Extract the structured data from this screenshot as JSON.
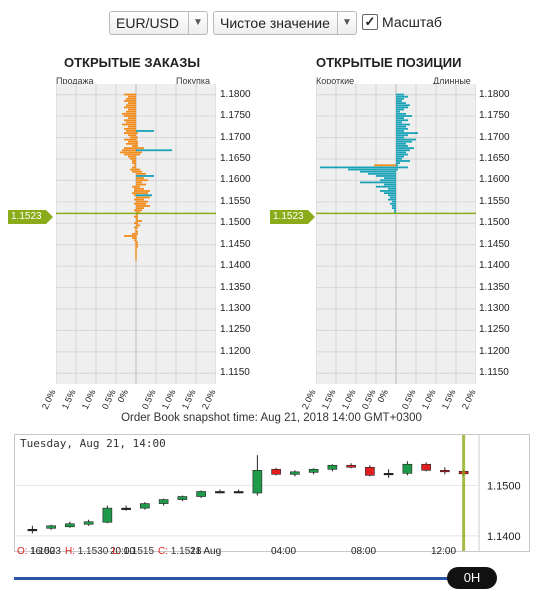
{
  "controls": {
    "symbol": "EUR/USD",
    "mode": "Чистое значение",
    "scale_label": "Масштаб",
    "scale_checked": true
  },
  "orders": {
    "title": "ОТКРЫТЫЕ ЗАКАЗЫ",
    "left_label": "Продажа",
    "right_label": "Покупка"
  },
  "positions": {
    "title": "ОТКРЫТЫЕ ПОЗИЦИИ",
    "left_label": "Короткие",
    "right_label": "Длинные"
  },
  "current_price": "1.1523",
  "y_ticks": [
    "1.1800",
    "1.1750",
    "1.1700",
    "1.1650",
    "1.1600",
    "1.1550",
    "1.1500",
    "1.1450",
    "1.1400",
    "1.1350",
    "1.1300",
    "1.1250",
    "1.1200",
    "1.1150"
  ],
  "x_ticks": [
    "2.0%",
    "1.5%",
    "1.0%",
    "0.5%",
    "0%",
    "0.5%",
    "1.0%",
    "1.5%",
    "2.0%"
  ],
  "snapshot": "Order Book snapshot time: Aug 21, 2018 14:00 GMT+0300",
  "colors": {
    "sell": "#f28c1a",
    "buy": "#1aa3b8",
    "price": "#8bac1a",
    "up": "#1f9a4a",
    "down": "#e02020"
  },
  "chart_data": [
    {
      "type": "bar",
      "name": "orders",
      "title": "ОТКРЫТЫЕ ЗАКАЗЫ",
      "ylim": [
        1.1125,
        1.1825
      ],
      "xlim": [
        -2.0,
        2.0
      ],
      "bucket": 0.0005,
      "sell": [
        0.3,
        0.2,
        0.25,
        0.3,
        0.2,
        0.25,
        0.3,
        0.2,
        0.25,
        0.35,
        0.3,
        0.2,
        0.3,
        0.25,
        0.35,
        0.2,
        0.3,
        0.25,
        0.3,
        0.2,
        0.15,
        0.3,
        0.2,
        0.25,
        0.1,
        0.3,
        0.35,
        0.4,
        0.3,
        0.2,
        0.15,
        0.1,
        0.1,
        0.05,
        0.1,
        0.15,
        0.1,
        0,
        0,
        0,
        0,
        0,
        0,
        0.1,
        0.05,
        0.05,
        0.1,
        0.05,
        0,
        0.05,
        0,
        0.05,
        0,
        0,
        0.05,
        0,
        0,
        0.05,
        0,
        0,
        0.05,
        0,
        0.05,
        0.02,
        0.02,
        0.1,
        0.3,
        0.1,
        0.05,
        0.02,
        0.02,
        0.02,
        0.02,
        0.02,
        0.02,
        0.02,
        0.02,
        0.02
      ],
      "buy": [
        0,
        0,
        0,
        0,
        0,
        0,
        0,
        0,
        0,
        0,
        0,
        0,
        0,
        0,
        0,
        0,
        0,
        0.45,
        0.05,
        0,
        0.05,
        0.02,
        0.05,
        0.05,
        0.05,
        0.2,
        0.9,
        0.15,
        0.1,
        0,
        0,
        0,
        0,
        0,
        0,
        0.1,
        0.15,
        0.25,
        0.45,
        0.2,
        0.3,
        0.15,
        0.25,
        0.1,
        0.2,
        0.35,
        0.3,
        0.4,
        0.35,
        0.2,
        0.3,
        0.25,
        0.35,
        0.2,
        0.15,
        0.1,
        0.05,
        0.05,
        0.05,
        0.15,
        0.05,
        0.1,
        0.05,
        0.02,
        0.05,
        0.05,
        0.02,
        0.02,
        0.02,
        0.05,
        0.05,
        0.05,
        0.02,
        0.02,
        0.02,
        0.02,
        0.02,
        0.02
      ]
    },
    {
      "type": "bar",
      "name": "positions",
      "title": "ОТКРЫТЫЕ ПОЗИЦИИ",
      "ylim": [
        1.1125,
        1.1825
      ],
      "xlim": [
        -2.0,
        2.0
      ],
      "bucket": 0.0005,
      "short": [
        0,
        0,
        0,
        0,
        0,
        0,
        0,
        0,
        0,
        0,
        0,
        0,
        0,
        0,
        0,
        0,
        0,
        0,
        0,
        0,
        0,
        0,
        0,
        0,
        0,
        0,
        0,
        0,
        0,
        0,
        0,
        0,
        0,
        0.55,
        1.9,
        1.2,
        0.9,
        0.7,
        0.5,
        0.3,
        0.4,
        0.9,
        0.3,
        0.5,
        0.2,
        0.4,
        0.3,
        0.2,
        0.15,
        0.2,
        0.1,
        0.15,
        0.1,
        0.1,
        0.05,
        0.05,
        0,
        0,
        0,
        0,
        0,
        0,
        0,
        0,
        0,
        0,
        0,
        0,
        0,
        0,
        0,
        0,
        0,
        0,
        0,
        0,
        0,
        0
      ],
      "long": [
        0.2,
        0.3,
        0.2,
        0.15,
        0.25,
        0.35,
        0.3,
        0.2,
        0.1,
        0.25,
        0.4,
        0.2,
        0.3,
        0.15,
        0.35,
        0.25,
        0.3,
        0.2,
        0.55,
        0.3,
        0.2,
        0.5,
        0.4,
        0.25,
        0.3,
        0.45,
        0.35,
        0.25,
        0.3,
        0.2,
        0.15,
        0.35,
        0.1,
        0.05,
        0.3,
        0.05,
        0,
        0,
        0,
        0,
        0,
        0,
        0,
        0,
        0,
        0,
        0,
        0,
        0,
        0,
        0,
        0,
        0,
        0,
        0,
        0,
        0,
        0,
        0,
        0,
        0,
        0,
        0,
        0,
        0,
        0,
        0,
        0,
        0,
        0,
        0,
        0,
        0,
        0,
        0,
        0,
        0,
        0
      ]
    },
    {
      "type": "candlestick",
      "name": "price",
      "x_labels": [
        "16:00",
        "20:00",
        "21 Aug",
        "04:00",
        "08:00",
        "12:00"
      ],
      "y_ticks": [
        "1.1500",
        "1.1400"
      ],
      "ylim": [
        1.137,
        1.16
      ],
      "candles": [
        {
          "o": 1.1413,
          "h": 1.142,
          "l": 1.1405,
          "c": 1.1413
        },
        {
          "o": 1.1415,
          "h": 1.1422,
          "l": 1.1412,
          "c": 1.142
        },
        {
          "o": 1.1418,
          "h": 1.1428,
          "l": 1.1416,
          "c": 1.1424
        },
        {
          "o": 1.1423,
          "h": 1.1432,
          "l": 1.142,
          "c": 1.1428
        },
        {
          "o": 1.1427,
          "h": 1.146,
          "l": 1.1425,
          "c": 1.1455
        },
        {
          "o": 1.1455,
          "h": 1.146,
          "l": 1.145,
          "c": 1.1455
        },
        {
          "o": 1.1455,
          "h": 1.1467,
          "l": 1.1452,
          "c": 1.1464
        },
        {
          "o": 1.1464,
          "h": 1.1474,
          "l": 1.146,
          "c": 1.1472
        },
        {
          "o": 1.1472,
          "h": 1.148,
          "l": 1.1469,
          "c": 1.1478
        },
        {
          "o": 1.1478,
          "h": 1.149,
          "l": 1.1475,
          "c": 1.1488
        },
        {
          "o": 1.1488,
          "h": 1.1492,
          "l": 1.1485,
          "c": 1.1488
        },
        {
          "o": 1.1488,
          "h": 1.1492,
          "l": 1.1486,
          "c": 1.1488
        },
        {
          "o": 1.1485,
          "h": 1.156,
          "l": 1.148,
          "c": 1.153
        },
        {
          "o": 1.1532,
          "h": 1.1535,
          "l": 1.152,
          "c": 1.1522
        },
        {
          "o": 1.1522,
          "h": 1.153,
          "l": 1.1518,
          "c": 1.1527
        },
        {
          "o": 1.1526,
          "h": 1.1534,
          "l": 1.1522,
          "c": 1.1532
        },
        {
          "o": 1.1532,
          "h": 1.1542,
          "l": 1.1528,
          "c": 1.154
        },
        {
          "o": 1.154,
          "h": 1.1544,
          "l": 1.1534,
          "c": 1.1536
        },
        {
          "o": 1.1536,
          "h": 1.154,
          "l": 1.1518,
          "c": 1.152
        },
        {
          "o": 1.1524,
          "h": 1.1532,
          "l": 1.1515,
          "c": 1.1524
        },
        {
          "o": 1.1524,
          "h": 1.1548,
          "l": 1.152,
          "c": 1.1542
        },
        {
          "o": 1.1542,
          "h": 1.1546,
          "l": 1.1528,
          "c": 1.153
        },
        {
          "o": 1.153,
          "h": 1.1536,
          "l": 1.1522,
          "c": 1.1528
        },
        {
          "o": 1.1528,
          "h": 1.1532,
          "l": 1.1518,
          "c": 1.1523
        }
      ]
    }
  ],
  "candle_chart": {
    "date_label": "Tuesday, Aug 21, 14:00",
    "ohlc": [
      {
        "k": "O:",
        "v": "1.1523"
      },
      {
        "k": "H:",
        "v": "1.1530"
      },
      {
        "k": "L:",
        "v": "1.1515"
      },
      {
        "k": "C:",
        "v": "1.1518"
      }
    ]
  },
  "slider": {
    "label": "0H"
  }
}
